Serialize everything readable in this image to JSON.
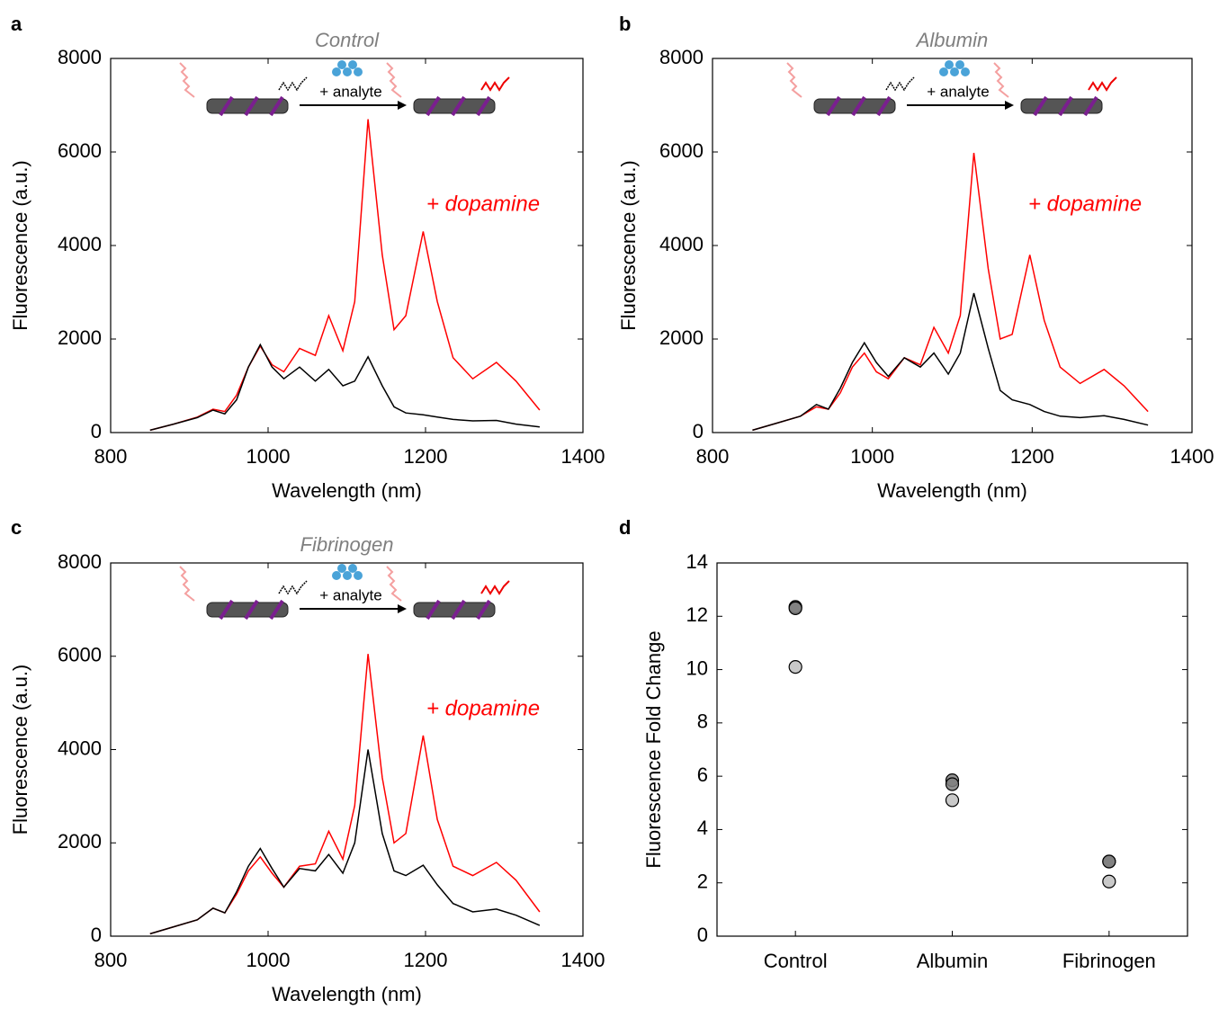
{
  "chart_data": [
    {
      "type": "line",
      "panel": "a",
      "title": "Control",
      "annotation": "+ dopamine",
      "inset_label": "+ analyte",
      "xlabel": "Wavelength (nm)",
      "ylabel": "Fluorescence (a.u.)",
      "xlim": [
        800,
        1400
      ],
      "xticks": [
        800,
        1000,
        1200,
        1400
      ],
      "ylim": [
        0,
        8000
      ],
      "yticks": [
        0,
        2000,
        4000,
        6000,
        8000
      ],
      "x": [
        850,
        880,
        910,
        930,
        945,
        960,
        975,
        990,
        1005,
        1020,
        1040,
        1060,
        1077,
        1095,
        1110,
        1127,
        1145,
        1160,
        1175,
        1197,
        1215,
        1235,
        1260,
        1290,
        1315,
        1345
      ],
      "series": [
        {
          "color": "#ff0000",
          "values": [
            50,
            180,
            330,
            500,
            450,
            800,
            1400,
            1850,
            1450,
            1300,
            1800,
            1650,
            2500,
            1750,
            2800,
            6700,
            3800,
            2200,
            2500,
            4300,
            2800,
            1600,
            1150,
            1500,
            1100,
            480
          ]
        },
        {
          "color": "#000000",
          "values": [
            50,
            180,
            320,
            480,
            400,
            700,
            1400,
            1880,
            1400,
            1150,
            1400,
            1100,
            1350,
            1000,
            1100,
            1620,
            1000,
            550,
            420,
            380,
            330,
            280,
            250,
            260,
            180,
            120
          ]
        }
      ]
    },
    {
      "type": "line",
      "panel": "b",
      "title": "Albumin",
      "annotation": "+ dopamine",
      "inset_label": "+ analyte",
      "xlabel": "Wavelength (nm)",
      "ylabel": "Fluorescence (a.u.)",
      "xlim": [
        800,
        1400
      ],
      "xticks": [
        800,
        1000,
        1200,
        1400
      ],
      "ylim": [
        0,
        8000
      ],
      "yticks": [
        0,
        2000,
        4000,
        6000,
        8000
      ],
      "x": [
        850,
        880,
        910,
        930,
        945,
        960,
        975,
        990,
        1005,
        1020,
        1040,
        1060,
        1077,
        1095,
        1110,
        1127,
        1145,
        1160,
        1175,
        1197,
        1215,
        1235,
        1260,
        1290,
        1315,
        1345
      ],
      "series": [
        {
          "color": "#ff0000",
          "values": [
            50,
            200,
            350,
            550,
            500,
            850,
            1400,
            1700,
            1300,
            1150,
            1600,
            1450,
            2250,
            1700,
            2500,
            5980,
            3500,
            2000,
            2100,
            3800,
            2400,
            1400,
            1050,
            1350,
            1000,
            450
          ]
        },
        {
          "color": "#000000",
          "values": [
            50,
            200,
            350,
            600,
            500,
            950,
            1500,
            1920,
            1500,
            1200,
            1600,
            1400,
            1700,
            1250,
            1700,
            2980,
            1800,
            900,
            700,
            600,
            450,
            350,
            320,
            360,
            280,
            160
          ]
        }
      ]
    },
    {
      "type": "line",
      "panel": "c",
      "title": "Fibrinogen",
      "annotation": "+ dopamine",
      "inset_label": "+ analyte",
      "xlabel": "Wavelength (nm)",
      "ylabel": "Fluorescence (a.u.)",
      "xlim": [
        800,
        1400
      ],
      "xticks": [
        800,
        1000,
        1200,
        1400
      ],
      "ylim": [
        0,
        8000
      ],
      "yticks": [
        0,
        2000,
        4000,
        6000,
        8000
      ],
      "x": [
        850,
        880,
        910,
        930,
        945,
        960,
        975,
        990,
        1005,
        1020,
        1040,
        1060,
        1077,
        1095,
        1110,
        1127,
        1145,
        1160,
        1175,
        1197,
        1215,
        1235,
        1260,
        1290,
        1315,
        1345
      ],
      "series": [
        {
          "color": "#ff0000",
          "values": [
            50,
            200,
            350,
            600,
            500,
            900,
            1400,
            1700,
            1350,
            1050,
            1500,
            1550,
            2250,
            1650,
            2800,
            6050,
            3400,
            2000,
            2200,
            4300,
            2500,
            1500,
            1300,
            1580,
            1200,
            520
          ]
        },
        {
          "color": "#000000",
          "values": [
            50,
            200,
            350,
            600,
            500,
            950,
            1500,
            1880,
            1450,
            1050,
            1450,
            1400,
            1750,
            1350,
            2000,
            4000,
            2200,
            1400,
            1300,
            1520,
            1100,
            700,
            520,
            580,
            450,
            230
          ]
        }
      ]
    },
    {
      "type": "scatter",
      "panel": "d",
      "ylabel": "Fluorescence Fold Change",
      "categories": [
        "Control",
        "Albumin",
        "Fibrinogen"
      ],
      "values": [
        [
          12.35,
          12.3,
          10.1
        ],
        [
          5.85,
          5.7,
          5.1
        ],
        [
          2.8,
          2.8,
          2.05
        ]
      ],
      "marker_colors": [
        "#7f7f7f",
        "#7f7f7f",
        "#bfbfbf"
      ],
      "ylim": [
        0,
        14
      ],
      "yticks": [
        0,
        2,
        4,
        6,
        8,
        10,
        12,
        14
      ]
    }
  ]
}
